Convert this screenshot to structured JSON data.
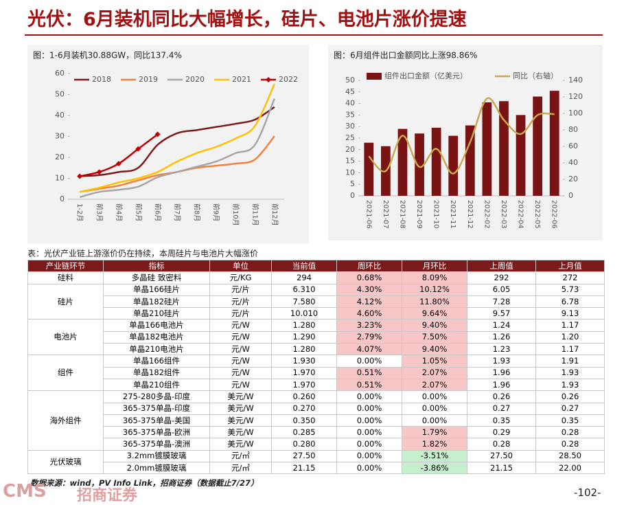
{
  "header": {
    "title": "光伏：6月装机同比大幅增长，硅片、电池片涨价提速"
  },
  "chart_data": [
    {
      "type": "line",
      "title": "图：1-6月装机30.88GW，同比137.4%",
      "categories": [
        "1-2月",
        "前3月",
        "前4月",
        "前5月",
        "前6月",
        "前7月",
        "前8月",
        "前9月",
        "前10月",
        "前11月",
        "前12月"
      ],
      "series": [
        {
          "name": "2018",
          "color": "#7a1a1a",
          "values": [
            11,
            11.5,
            13,
            15,
            26,
            31.5,
            33,
            34.5,
            36,
            38,
            44
          ]
        },
        {
          "name": "2019",
          "color": "#f08040",
          "values": [
            3.5,
            5,
            6.5,
            9,
            11.5,
            13,
            15,
            16,
            17,
            19,
            30.1
          ]
        },
        {
          "name": "2020",
          "color": "#a6a6a6",
          "values": [
            1,
            3.5,
            4.5,
            6,
            10.5,
            13,
            15.5,
            18,
            22,
            26,
            48
          ]
        },
        {
          "name": "2021",
          "color": "#ffc000",
          "values": [
            3.5,
            5.5,
            8,
            10,
            13,
            18,
            22,
            25,
            29,
            35,
            55
          ]
        },
        {
          "name": "2022",
          "color": "#c00000",
          "marker": "diamond",
          "values": [
            11,
            13,
            17,
            24,
            31,
            null,
            null,
            null,
            null,
            null,
            null
          ]
        }
      ],
      "ylim": [
        0,
        60
      ],
      "yticks": [
        0,
        10,
        20,
        30,
        40,
        50,
        60
      ],
      "legend": "top",
      "grid": false
    },
    {
      "type": "bar-line",
      "title": "图：6月组件出口金额同比上涨98.86%",
      "categories": [
        "2021-06",
        "2021-07",
        "2021-08",
        "2021-09",
        "2021-10",
        "2021-11",
        "2021-12",
        "2022-02",
        "2022-03",
        "2022-04",
        "2022-05",
        "2022-06"
      ],
      "series": [
        {
          "name": "组件出口金额（亿美元）",
          "color": "#7a1414",
          "kind": "bar",
          "values": [
            23,
            21.5,
            29,
            27,
            29.5,
            26,
            30.5,
            40.5,
            41,
            35,
            43,
            45.5
          ]
        },
        {
          "name": "同比（右轴）",
          "color": "#c8a850",
          "kind": "line",
          "axis": "y2",
          "values": [
            48,
            30,
            73,
            35,
            57,
            27,
            65,
            118,
            92,
            75,
            98,
            99
          ]
        }
      ],
      "ylim": [
        0,
        50
      ],
      "yticks": [
        0,
        5,
        10,
        15,
        20,
        25,
        30,
        35,
        40,
        45,
        50
      ],
      "y2lim": [
        0,
        140
      ],
      "y2ticks": [
        0,
        20,
        40,
        60,
        80,
        100,
        120,
        140
      ],
      "legend": "top",
      "grid": false
    }
  ],
  "table": {
    "title": "表：光伏产业链上游涨价仍在持续，本周硅片与电池片大幅涨价",
    "header": [
      "产业链环节",
      "指标",
      "单位",
      "当前值",
      "周环比",
      "月环比",
      "上周值",
      "上月值"
    ],
    "groups": [
      {
        "name": "硅料",
        "rows": [
          [
            "多晶硅 致密料",
            "元/KG",
            "294",
            "0.68%",
            "8.09%",
            "292",
            "272"
          ]
        ]
      },
      {
        "name": "硅片",
        "rows": [
          [
            "单晶166硅片",
            "元/片",
            "6.310",
            "4.30%",
            "10.12%",
            "6.05",
            "5.73"
          ],
          [
            "单晶182硅片",
            "元/片",
            "7.580",
            "4.12%",
            "11.80%",
            "7.28",
            "6.78"
          ],
          [
            "单晶210硅片",
            "元/片",
            "10.010",
            "4.60%",
            "9.64%",
            "9.57",
            "9.13"
          ]
        ]
      },
      {
        "name": "电池片",
        "rows": [
          [
            "单晶166电池片",
            "元/W",
            "1.280",
            "3.23%",
            "9.40%",
            "1.24",
            "1.17"
          ],
          [
            "单晶182电池片",
            "元/W",
            "1.290",
            "2.79%",
            "7.50%",
            "1.26",
            "1.20"
          ],
          [
            "单晶210电池片",
            "元/W",
            "1.280",
            "4.07%",
            "9.40%",
            "1.23",
            "1.17"
          ]
        ]
      },
      {
        "name": "组件",
        "rows": [
          [
            "单晶166组件",
            "元/W",
            "1.930",
            "0.00%",
            "1.05%",
            "1.93",
            "1.91"
          ],
          [
            "单晶182组件",
            "元/W",
            "1.970",
            "0.51%",
            "2.07%",
            "1.96",
            "1.93"
          ],
          [
            "单晶210组件",
            "元/W",
            "1.970",
            "0.51%",
            "2.07%",
            "1.96",
            "1.93"
          ]
        ]
      },
      {
        "name": "海外组件",
        "rows": [
          [
            "275-280多晶-印度",
            "美元/W",
            "0.260",
            "0.00%",
            "0.00%",
            "0.26",
            "0.26"
          ],
          [
            "365-375单晶-印度",
            "美元/W",
            "0.270",
            "0.00%",
            "0.00%",
            "0.27",
            "0.27"
          ],
          [
            "365-375单晶-美国",
            "美元/W",
            "0.350",
            "0.00%",
            "0.00%",
            "0.35",
            "0.35"
          ],
          [
            "365-375单晶-欧洲",
            "美元/W",
            "0.285",
            "0.00%",
            "1.79%",
            "0.29",
            "0.28"
          ],
          [
            "365-375单晶-澳洲",
            "美元/W",
            "0.280",
            "0.00%",
            "1.82%",
            "0.28",
            "0.28"
          ]
        ]
      },
      {
        "name": "光伏玻璃",
        "rows": [
          [
            "3.2mm镀膜玻璃",
            "元/㎡",
            "27.50",
            "0.00%",
            "-3.51%",
            "27.50",
            "28.50"
          ],
          [
            "2.0mm镀膜玻璃",
            "元/㎡",
            "21.15",
            "0.00%",
            "-3.86%",
            "21.15",
            "22.00"
          ]
        ]
      }
    ]
  },
  "footer": {
    "source": "数据来源：wind，PV Info Link，招商证券（数据截止7/27）",
    "logo": "CMS",
    "brand": "招商证券",
    "page": "-102-"
  }
}
